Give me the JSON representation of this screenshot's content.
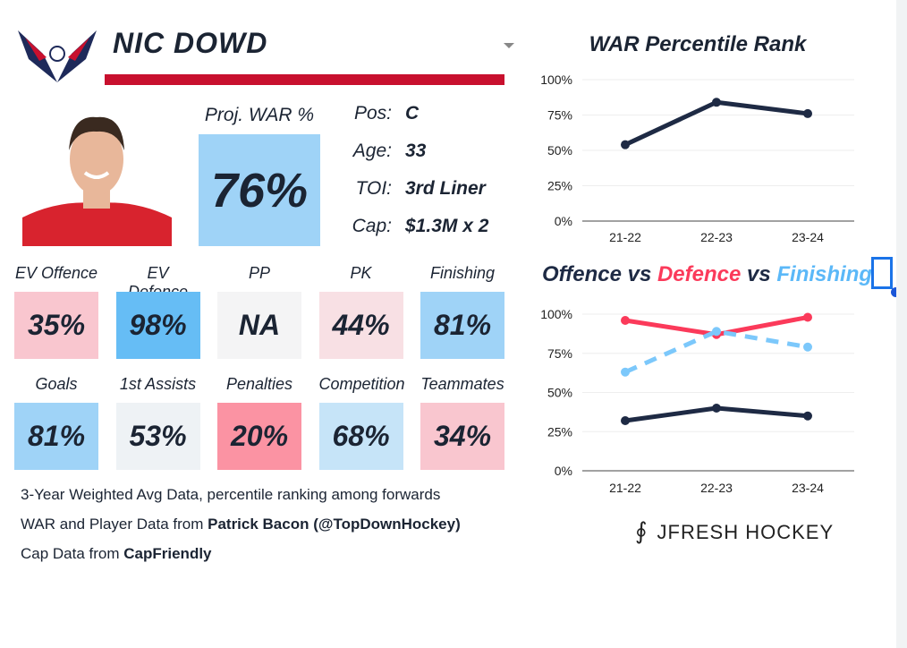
{
  "player": {
    "name": "NIC DOWD",
    "proj_war_label": "Proj. WAR %",
    "proj_war": "76%",
    "proj_war_color": "#9fd3f7"
  },
  "info": [
    {
      "k": "Pos:",
      "v": "C"
    },
    {
      "k": "Age:",
      "v": "33"
    },
    {
      "k": "TOI:",
      "v": "3rd Liner"
    },
    {
      "k": "Cap:",
      "v": "$1.3M x 2"
    }
  ],
  "tiles": [
    {
      "label": "EV Offence",
      "value": "35%",
      "color": "#f9c6cf"
    },
    {
      "label": "EV Defence",
      "value": "98%",
      "color": "#66bdf5"
    },
    {
      "label": "PP",
      "value": "NA",
      "color": "#f4f4f5"
    },
    {
      "label": "PK",
      "value": "44%",
      "color": "#f8e0e4"
    },
    {
      "label": "Finishing",
      "value": "81%",
      "color": "#9fd3f7"
    },
    {
      "label": "Goals",
      "value": "81%",
      "color": "#9fd3f7"
    },
    {
      "label": "1st Assists",
      "value": "53%",
      "color": "#eef2f5"
    },
    {
      "label": "Penalties",
      "value": "20%",
      "color": "#fb93a3"
    },
    {
      "label": "Competition",
      "value": "68%",
      "color": "#c6e4f8"
    },
    {
      "label": "Teammates",
      "value": "34%",
      "color": "#f9c6cf"
    }
  ],
  "footer": {
    "line1": "3-Year Weighted Avg Data, percentile ranking among forwards",
    "line2_pre": "WAR and Player Data from ",
    "line2_bold": "Patrick Bacon (@TopDownHockey)",
    "line3_pre": "Cap Data from ",
    "line3_bold": "CapFriendly"
  },
  "brand": "JFRESH HOCKEY",
  "chart_data": [
    {
      "type": "line",
      "title": "WAR Percentile Rank",
      "categories": [
        "21-22",
        "22-23",
        "23-24"
      ],
      "yticks": [
        "0%",
        "25%",
        "50%",
        "75%",
        "100%"
      ],
      "ylim": [
        0,
        100
      ],
      "series": [
        {
          "name": "WAR",
          "values": [
            54,
            84,
            76
          ],
          "color": "#1e2a44"
        }
      ]
    },
    {
      "type": "line",
      "title_parts": [
        "Offence",
        " vs ",
        "Defence",
        " vs ",
        "Finishing"
      ],
      "categories": [
        "21-22",
        "22-23",
        "23-24"
      ],
      "yticks": [
        "0%",
        "25%",
        "50%",
        "75%",
        "100%"
      ],
      "ylim": [
        0,
        100
      ],
      "series": [
        {
          "name": "Defence",
          "values": [
            96,
            87,
            98
          ],
          "color": "#fb3a5a"
        },
        {
          "name": "Finishing",
          "values": [
            63,
            89,
            79
          ],
          "color": "#7cc8fb",
          "dashed": true
        },
        {
          "name": "Offence",
          "values": [
            32,
            40,
            35
          ],
          "color": "#1e2a44"
        }
      ]
    }
  ]
}
